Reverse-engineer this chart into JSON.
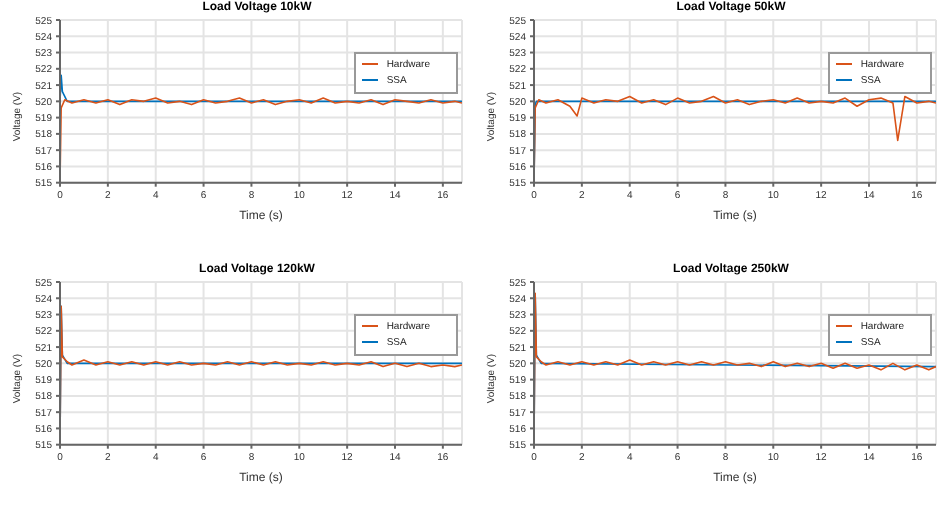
{
  "chart_data": [
    {
      "type": "line",
      "title": "Load Voltage 10kW",
      "xlabel": "Time (s)",
      "ylabel": "Voltage (V)",
      "xlim": [
        0,
        16.8
      ],
      "xticks": [
        0,
        2,
        4,
        6,
        8,
        10,
        12,
        14,
        16
      ],
      "ylim": [
        515,
        525
      ],
      "yticks": [
        515,
        516,
        517,
        518,
        519,
        520,
        521,
        522,
        523,
        524,
        525
      ],
      "grid": true,
      "legend": "top right",
      "series": [
        {
          "name": "SSA",
          "color": "#0072bd",
          "x": [
            0,
            0.05,
            0.1,
            0.3,
            16.8
          ],
          "values": [
            520,
            521.6,
            520.6,
            520,
            520
          ]
        },
        {
          "name": "Hardware",
          "color": "#d95319",
          "x": [
            0,
            0.05,
            0.2,
            0.5,
            1,
            1.5,
            2,
            2.5,
            3,
            3.5,
            4,
            4.5,
            5,
            5.5,
            6,
            6.5,
            7,
            7.5,
            8,
            8.5,
            9,
            9.5,
            10,
            10.5,
            11,
            11.5,
            12,
            12.5,
            13,
            13.5,
            14,
            14.5,
            15,
            15.5,
            16,
            16.5,
            16.8
          ],
          "values": [
            515,
            519.6,
            520.1,
            519.9,
            520.1,
            519.9,
            520.1,
            519.8,
            520.1,
            520,
            520.2,
            519.9,
            520,
            519.8,
            520.1,
            519.9,
            520,
            520.2,
            519.9,
            520.1,
            519.8,
            520,
            520.1,
            519.9,
            520.2,
            519.9,
            520,
            519.9,
            520.1,
            519.8,
            520.1,
            520,
            519.9,
            520.1,
            519.9,
            520,
            519.9
          ]
        }
      ]
    },
    {
      "type": "line",
      "title": "Load Voltage 50kW",
      "xlabel": "Time (s)",
      "ylabel": "Voltage (V)",
      "xlim": [
        0,
        16.8
      ],
      "xticks": [
        0,
        2,
        4,
        6,
        8,
        10,
        12,
        14,
        16
      ],
      "ylim": [
        515,
        525
      ],
      "yticks": [
        515,
        516,
        517,
        518,
        519,
        520,
        521,
        522,
        523,
        524,
        525
      ],
      "grid": true,
      "legend": "top right",
      "series": [
        {
          "name": "SSA",
          "color": "#0072bd",
          "x": [
            0,
            0.05,
            0.1,
            16.8
          ],
          "values": [
            515,
            519.8,
            520,
            520
          ]
        },
        {
          "name": "Hardware",
          "color": "#d95319",
          "x": [
            0,
            0.05,
            0.2,
            0.5,
            1,
            1.5,
            1.8,
            2,
            2.5,
            3,
            3.5,
            4,
            4.5,
            5,
            5.5,
            6,
            6.5,
            7,
            7.5,
            8,
            8.5,
            9,
            9.5,
            10,
            10.5,
            11,
            11.5,
            12,
            12.5,
            13,
            13.5,
            14,
            14.5,
            15,
            15.2,
            15.5,
            16,
            16.5,
            16.8
          ],
          "values": [
            515,
            519.6,
            520.1,
            519.9,
            520.1,
            519.7,
            519.1,
            520.2,
            519.9,
            520.1,
            520,
            520.3,
            519.9,
            520.1,
            519.8,
            520.2,
            519.9,
            520,
            520.3,
            519.9,
            520.1,
            519.8,
            520,
            520.1,
            519.9,
            520.2,
            519.9,
            520,
            519.9,
            520.2,
            519.7,
            520.1,
            520.2,
            519.9,
            517.6,
            520.3,
            519.9,
            520,
            519.9
          ]
        }
      ]
    },
    {
      "type": "line",
      "title": "Load Voltage 120kW",
      "xlabel": "Time (s)",
      "ylabel": "Voltage (V)",
      "xlim": [
        0,
        16.8
      ],
      "xticks": [
        0,
        2,
        4,
        6,
        8,
        10,
        12,
        14,
        16
      ],
      "ylim": [
        515,
        525
      ],
      "yticks": [
        515,
        516,
        517,
        518,
        519,
        520,
        521,
        522,
        523,
        524,
        525
      ],
      "grid": true,
      "legend": "top right",
      "series": [
        {
          "name": "SSA",
          "color": "#0072bd",
          "x": [
            0,
            0.05,
            0.1,
            0.3,
            16.8
          ],
          "values": [
            515,
            523.5,
            520.5,
            520,
            520
          ]
        },
        {
          "name": "Hardware",
          "color": "#d95319",
          "x": [
            0,
            0.05,
            0.1,
            0.3,
            0.5,
            1,
            1.5,
            2,
            2.5,
            3,
            3.5,
            4,
            4.5,
            5,
            5.5,
            6,
            6.5,
            7,
            7.5,
            8,
            8.5,
            9,
            9.5,
            10,
            10.5,
            11,
            11.5,
            12,
            12.5,
            13,
            13.5,
            14,
            14.5,
            15,
            15.5,
            16,
            16.5,
            16.8
          ],
          "values": [
            515,
            523.5,
            520.4,
            520.1,
            519.9,
            520.2,
            519.9,
            520.1,
            519.9,
            520.1,
            519.9,
            520.1,
            519.9,
            520.1,
            519.9,
            520,
            519.9,
            520.1,
            519.9,
            520.1,
            519.9,
            520.1,
            519.9,
            520,
            519.9,
            520.1,
            519.9,
            520,
            519.9,
            520.1,
            519.8,
            520,
            519.8,
            520,
            519.8,
            519.9,
            519.8,
            519.9
          ]
        }
      ]
    },
    {
      "type": "line",
      "title": "Load Voltage 250kW",
      "xlabel": "Time (s)",
      "ylabel": "Voltage (V)",
      "xlim": [
        0,
        16.8
      ],
      "xticks": [
        0,
        2,
        4,
        6,
        8,
        10,
        12,
        14,
        16
      ],
      "ylim": [
        515,
        525
      ],
      "yticks": [
        515,
        516,
        517,
        518,
        519,
        520,
        521,
        522,
        523,
        524,
        525
      ],
      "grid": true,
      "legend": "top right",
      "series": [
        {
          "name": "SSA",
          "color": "#0072bd",
          "x": [
            0,
            0.05,
            0.1,
            0.3,
            16.8
          ],
          "values": [
            515,
            524.2,
            520.5,
            520,
            519.8
          ]
        },
        {
          "name": "Hardware",
          "color": "#d95319",
          "x": [
            0,
            0.05,
            0.1,
            0.3,
            0.5,
            1,
            1.5,
            2,
            2.5,
            3,
            3.5,
            4,
            4.5,
            5,
            5.5,
            6,
            6.5,
            7,
            7.5,
            8,
            8.5,
            9,
            9.5,
            10,
            10.5,
            11,
            11.5,
            12,
            12.5,
            13,
            13.5,
            14,
            14.5,
            15,
            15.5,
            16,
            16.5,
            16.8
          ],
          "values": [
            515,
            524.3,
            520.4,
            520.1,
            519.9,
            520.1,
            519.9,
            520.1,
            519.9,
            520.1,
            519.9,
            520.2,
            519.9,
            520.1,
            519.9,
            520.1,
            519.9,
            520.1,
            519.9,
            520.1,
            519.9,
            520,
            519.8,
            520.1,
            519.8,
            520,
            519.8,
            520,
            519.7,
            520,
            519.7,
            519.9,
            519.6,
            520,
            519.6,
            519.9,
            519.6,
            519.8
          ]
        }
      ]
    }
  ]
}
